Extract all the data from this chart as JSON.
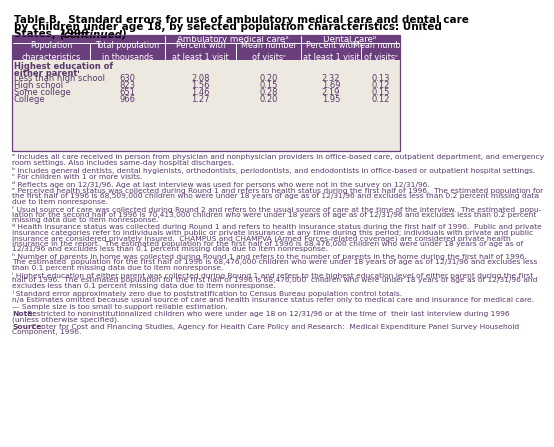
{
  "title_line1": "Table B.  Standard errors for use of ambulatory medical care and dental care",
  "title_line2": "by children under age 18, by selected population characteristics: United",
  "title_line3": "States, 1996 ",
  "title_italic": "(continued)",
  "header_purple": "#6B3F7E",
  "header_text_color": "#FFFFFF",
  "body_bg": "#EDE8E0",
  "body_text_color": "#5B3A6B",
  "title_text_color": "#000000",
  "footnote_text_color": "#5B3A6B",
  "amb_header": "Ambulatory medical careᵃ",
  "dent_header": "Dental careᵇ",
  "col_headers": [
    "Population\ncharacteristics",
    "Total population\nin thousands",
    "Percent with\nat least 1 visit",
    "Mean number\nof visitsᶜ",
    "Percent with\nat least 1 visit",
    "Mean number\nof visitsᶜ"
  ],
  "section_header_line1": "Highest education of",
  "section_header_line2": "either parentⁱ",
  "rows": [
    [
      "Less than high school",
      "630",
      "2.08",
      "0.20",
      "2.32",
      "0.13"
    ],
    [
      "High school",
      "823",
      "1.56",
      "0.15",
      "1.69",
      "0.12"
    ],
    [
      "Some college",
      "651",
      "1.46",
      "0.28",
      "2.19",
      "0.15"
    ],
    [
      "College",
      "966",
      "1.27",
      "0.20",
      "1.95",
      "0.12"
    ]
  ],
  "footnotes": [
    "ᵃ Includes all care received in person from physician and nonphysician providers in office-based care, outpatient department, and emergency\nroom settings. Also includes same-day hospital discharges.",
    "ᵇ Includes general dentists, dental hygienists, orthodontists, periodontists, and endodontists in office-based or outpatient hospital settings.",
    "ᶜ For children with 1 or more visits.",
    "ᵈ Reflects age on 12/31/96. Age at last interview was used for persons who were not in the survey on 12/31/96.",
    "ᵉ Perceived health status was collected during Round 1 and refers to health status during the first half of 1996.  The estimated population for\nthe first half of 1996 is 68,509,000 children who were under 18 years of age as of 12/31/96 and excludes less than 0.2 percent missing data\ndue to item nonresponse.",
    "ᶠ Usual source of care was collected during Round 2 and refers to the usual source of care at the time of the interview.  The estimated  popu-\nlation for the second half of 1996 is 70,413,000 children who were under 18 years of age as of 12/31/96 and excludes less than 0.2 percent\nmissing data due to item nonresponse.",
    "ᵍ Health insurance status was collected during Round 1 and refers to health insurance status during the first half of 1996.  Public and private\ninsurance categories refer to individuals with public or private insurance at any time during this period; individuals with private and public\ninsurance are considered privately insured.  CHAMPUS and CHAMPVA (Armed Forces-related coverage) are considered private health\ninsurance in the report.  The estimated population for the first half of 1996 is 68,476,000 children who were under 18 years of age as of\n12/31/96 and excludes less than 0.1 percent missing data due to item nonresponse.",
    "ʰ Number of parents in home was collected during Round 1 and refers to the number of parents in the home during the first half of 1996.\nThe estimated  population for the first half of 1996 is 68,476,000 children who were under 18 years of age as of 12/31/96 and excludes less\nthan 0.1 percent missing data due to item nonresponse.",
    "ⁱ Highest education of either parent was collected during Round 1 and refers to the highest education level of either parent during the first\nhalf of 1996.  The estimated population for the first half of 1996 is 68,476,000  children who were under 18 years of age as of 12/31/96 and\nexcludes less than 0.1 percent missing data due to item nonresponse.",
    "ʲ Standard error approximately zero due to poststratification to Census Bureau population control totals.",
    "n/a Estimates omitted because usual source of care and health insurance status refer only to medical care and insurance for medical care.",
    "— Sample size is too small to support reliable estimation.",
    "Note: Restricted to noninstitutionalized children who were under age 18 on 12/31/96 or at the time of  their last interview during 1996\n(unless otherwise specified).",
    "Source: Center for Cost and Financing Studies, Agency for Health Care Policy and Research:  Medical Expenditure Panel Survey Household\nComponent, 1996."
  ],
  "fn_bold_prefixes": [
    null,
    null,
    null,
    null,
    null,
    null,
    null,
    null,
    null,
    null,
    null,
    null,
    "Note:",
    "Source:"
  ]
}
